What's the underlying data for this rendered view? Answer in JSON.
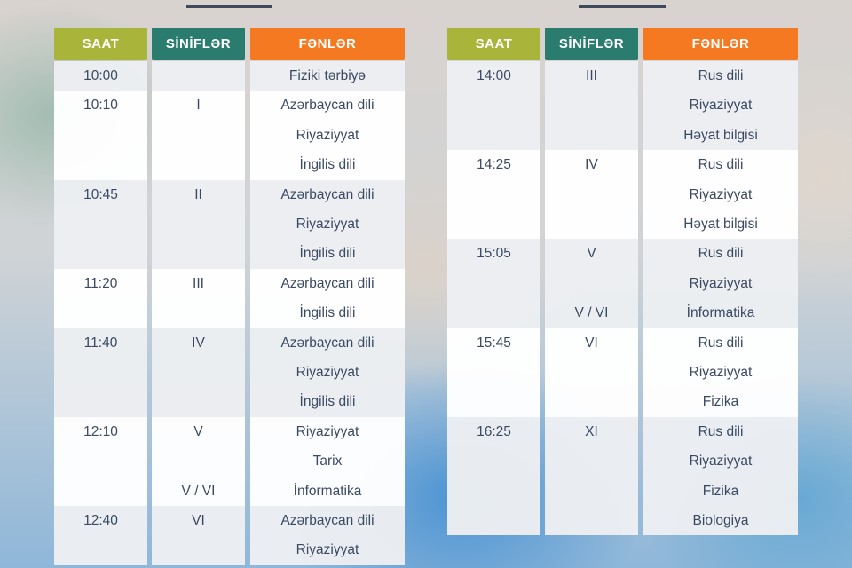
{
  "headers": {
    "time": "SAAT",
    "grades": "SİNİFLƏR",
    "subjects": "FƏNLƏR"
  },
  "left_table": {
    "blocks": [
      {
        "time": "10:00",
        "grades": [
          ""
        ],
        "subjects": [
          "Fiziki tərbiyə"
        ]
      },
      {
        "time": "10:10",
        "grades": [
          "I"
        ],
        "subjects": [
          "Azərbaycan dili",
          "Riyaziyyat",
          "İngilis dili"
        ]
      },
      {
        "time": "10:45",
        "grades": [
          "II"
        ],
        "subjects": [
          "Azərbaycan dili",
          "Riyaziyyat",
          "İngilis dili"
        ]
      },
      {
        "time": "11:20",
        "grades": [
          "III"
        ],
        "subjects": [
          "Azərbaycan dili",
          "İngilis dili"
        ]
      },
      {
        "time": "11:40",
        "grades": [
          "IV"
        ],
        "subjects": [
          "Azərbaycan dili",
          "Riyaziyyat",
          "İngilis dili"
        ]
      },
      {
        "time": "12:10",
        "grades": [
          "V",
          "",
          "V / VI"
        ],
        "subjects": [
          "Riyaziyyat",
          "Tarix",
          "İnformatika"
        ]
      },
      {
        "time": "12:40",
        "grades": [
          "VI"
        ],
        "subjects": [
          "Azərbaycan dili",
          "Riyaziyyat"
        ]
      }
    ]
  },
  "right_table": {
    "blocks": [
      {
        "time": "14:00",
        "grades": [
          "III"
        ],
        "subjects": [
          "Rus dili",
          "Riyaziyyat",
          "Həyat bilgisi"
        ]
      },
      {
        "time": "14:25",
        "grades": [
          "IV"
        ],
        "subjects": [
          "Rus dili",
          "Riyaziyyat",
          "Həyat bilgisi"
        ]
      },
      {
        "time": "15:05",
        "grades": [
          "V",
          "",
          "V / VI"
        ],
        "subjects": [
          "Rus dili",
          "Riyaziyyat",
          "İnformatika"
        ]
      },
      {
        "time": "15:45",
        "grades": [
          "VI"
        ],
        "subjects": [
          "Rus dili",
          "Riyaziyyat",
          "Fizika"
        ]
      },
      {
        "time": "16:25",
        "grades": [
          "XI"
        ],
        "subjects": [
          "Rus dili",
          "Riyaziyyat",
          "Fizika",
          "Biologiya"
        ]
      }
    ]
  },
  "colors": {
    "time_header": "#a9b53a",
    "grades_header": "#2a7d6e",
    "subjects_header": "#f47920",
    "text": "#3b4a63"
  }
}
